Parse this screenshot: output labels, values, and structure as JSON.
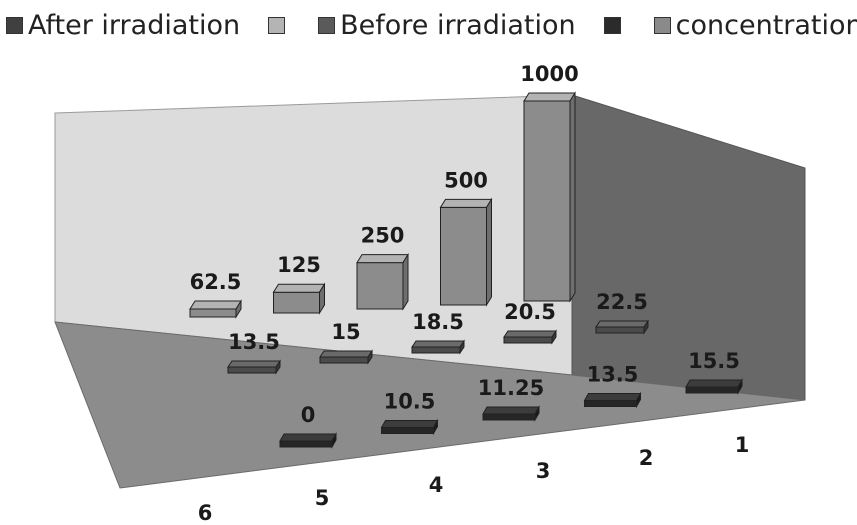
{
  "chart_data": {
    "type": "bar",
    "subtype": "3d-column",
    "title": "",
    "xlabel": "",
    "ylabel": "",
    "categories": [
      "6",
      "5",
      "4",
      "3",
      "2",
      "1"
    ],
    "legend": {
      "position": "top",
      "entries": [
        {
          "label": "After irradiation",
          "color": "#404040"
        },
        {
          "label": "",
          "color": "#b4b4b4"
        },
        {
          "label": "Before irradiation",
          "color": "#5a5a5a"
        },
        {
          "label": "",
          "color": "#2b2b2b"
        },
        {
          "label": "concentration",
          "color": "#8a8a8a"
        }
      ]
    },
    "series": [
      {
        "name": "concentration",
        "values": [
          62.5,
          125,
          250,
          500,
          1000,
          null
        ],
        "labels": [
          "62.5",
          "125",
          "250",
          "500",
          "1000",
          ""
        ]
      },
      {
        "name": "Before irradiation",
        "values": [
          13.5,
          15,
          18.5,
          20.5,
          22.5,
          null
        ],
        "labels": [
          "13.5",
          "15",
          "18.5",
          "20.5",
          "22.5",
          ""
        ]
      },
      {
        "name": "After irradiation",
        "values": [
          0,
          10.5,
          11.25,
          13.5,
          15.5,
          null
        ],
        "labels": [
          "0",
          "10.5",
          "11.25",
          "13.5",
          "15.5",
          ""
        ]
      }
    ],
    "grid": false
  }
}
